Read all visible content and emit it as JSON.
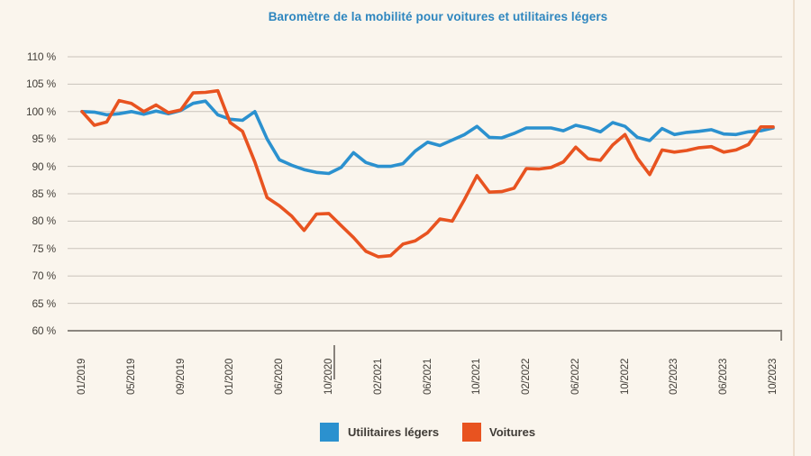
{
  "title": "Baromètre de la mobilité pour voitures et utilitaires légers",
  "chart_data": {
    "type": "line",
    "title": "Baromètre de la mobilité pour voitures et utilitaires légers",
    "ylim": [
      60,
      110
    ],
    "grid": true,
    "legend_position": "bottom",
    "y_ticks": [
      {
        "value": 110,
        "label": "110 %"
      },
      {
        "value": 105,
        "label": "105 %"
      },
      {
        "value": 100,
        "label": "100 %"
      },
      {
        "value": 95,
        "label": "95 %"
      },
      {
        "value": 90,
        "label": "90 %"
      },
      {
        "value": 85,
        "label": "85 %"
      },
      {
        "value": 80,
        "label": "80 %"
      },
      {
        "value": 75,
        "label": "75 %"
      },
      {
        "value": 70,
        "label": "70 %"
      },
      {
        "value": 65,
        "label": "65 %"
      },
      {
        "value": 60,
        "label": "60 %"
      }
    ],
    "x_ticks": [
      {
        "index": 0,
        "label": "01/2019"
      },
      {
        "index": 4,
        "label": "05/2019"
      },
      {
        "index": 8,
        "label": "09/2019"
      },
      {
        "index": 12,
        "label": "01/2020"
      },
      {
        "index": 16,
        "label": "06/2020"
      },
      {
        "index": 20,
        "label": "10/2020"
      },
      {
        "index": 24,
        "label": "02/2021"
      },
      {
        "index": 28,
        "label": "06/2021"
      },
      {
        "index": 32,
        "label": "10/2021"
      },
      {
        "index": 36,
        "label": "02/2022"
      },
      {
        "index": 40,
        "label": "06/2022"
      },
      {
        "index": 44,
        "label": "10/2022"
      },
      {
        "index": 48,
        "label": "02/2023"
      },
      {
        "index": 52,
        "label": "06/2023"
      },
      {
        "index": 56,
        "label": "10/2023"
      }
    ],
    "series": [
      {
        "name": "Utilitaires légers",
        "color": "#2b91cf",
        "values": [
          100.0,
          99.9,
          99.4,
          99.6,
          100.0,
          99.5,
          100.1,
          99.6,
          100.2,
          101.5,
          101.9,
          99.4,
          98.6,
          98.4,
          100.0,
          95.0,
          91.2,
          90.2,
          89.4,
          88.9,
          88.7,
          89.8,
          92.5,
          90.7,
          90.0,
          90.0,
          90.5,
          92.8,
          94.4,
          93.8,
          94.8,
          95.8,
          97.3,
          95.3,
          95.2,
          96.0,
          97.0,
          97.0,
          97.0,
          96.5,
          97.5,
          97.0,
          96.3,
          98.0,
          97.3,
          95.3,
          94.7,
          96.9,
          95.8,
          96.2,
          96.4,
          96.7,
          95.9,
          95.8,
          96.3,
          96.5,
          97.0
        ]
      },
      {
        "name": "Voitures",
        "color": "#e85320",
        "values": [
          100.0,
          97.5,
          98.1,
          102.0,
          101.5,
          100.0,
          101.2,
          99.8,
          100.3,
          103.4,
          103.5,
          103.8,
          98.0,
          96.4,
          90.8,
          84.3,
          82.8,
          80.9,
          78.3,
          81.3,
          81.4,
          79.2,
          77.0,
          74.5,
          73.5,
          73.7,
          75.8,
          76.4,
          77.9,
          80.4,
          80.0,
          84.0,
          88.3,
          85.3,
          85.4,
          86.0,
          89.6,
          89.5,
          89.8,
          90.8,
          93.5,
          91.4,
          91.1,
          93.9,
          95.8,
          91.5,
          88.5,
          93.0,
          92.6,
          92.9,
          93.4,
          93.6,
          92.6,
          93.0,
          94.0,
          97.2,
          97.2
        ]
      }
    ]
  },
  "legend": {
    "items": [
      {
        "label": "Utilitaires légers",
        "color": "#2b91cf"
      },
      {
        "label": "Voitures",
        "color": "#e85320"
      }
    ]
  },
  "style": {
    "background": "#faf5ed",
    "grid_color": "#c9c4bc",
    "axis_color": "#8b867f",
    "tick_text_color": "#44403a",
    "title_color": "#2e86bf"
  }
}
